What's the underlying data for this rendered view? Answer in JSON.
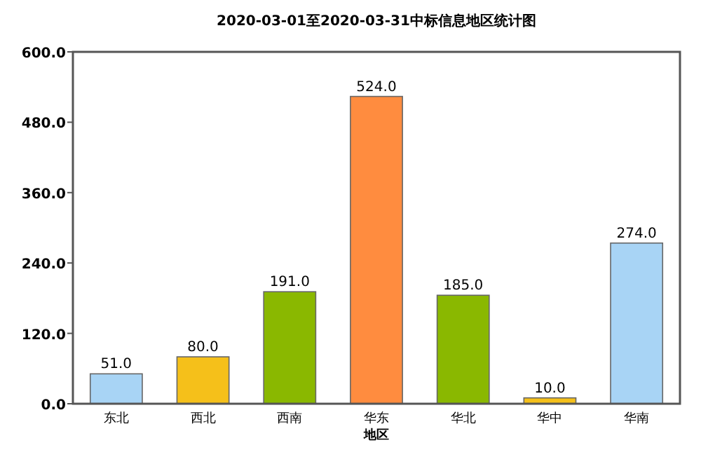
{
  "chart_data": {
    "type": "bar",
    "title": "2020-03-01至2020-03-31中标信息地区统计图",
    "xlabel": "地区",
    "categories": [
      "东北",
      "西北",
      "西南",
      "华东",
      "华北",
      "华中",
      "华南"
    ],
    "values": [
      51.0,
      80.0,
      191.0,
      524.0,
      185.0,
      10.0,
      274.0
    ],
    "colors": [
      "#a8d4f5",
      "#f5c01a",
      "#8ab800",
      "#ff8c3f",
      "#8ab800",
      "#f5c01a",
      "#a8d4f5"
    ],
    "value_labels": [
      "51.0",
      "80.0",
      "191.0",
      "524.0",
      "185.0",
      "10.0",
      "274.0"
    ],
    "ylim": [
      0,
      600
    ],
    "yticks": [
      {
        "value": 0,
        "label": "0.0"
      },
      {
        "value": 120,
        "label": "120.0"
      },
      {
        "value": 240,
        "label": "240.0"
      },
      {
        "value": 360,
        "label": "360.0"
      },
      {
        "value": 480,
        "label": "480.0"
      },
      {
        "value": 600,
        "label": "600.0"
      }
    ],
    "grid": false
  }
}
